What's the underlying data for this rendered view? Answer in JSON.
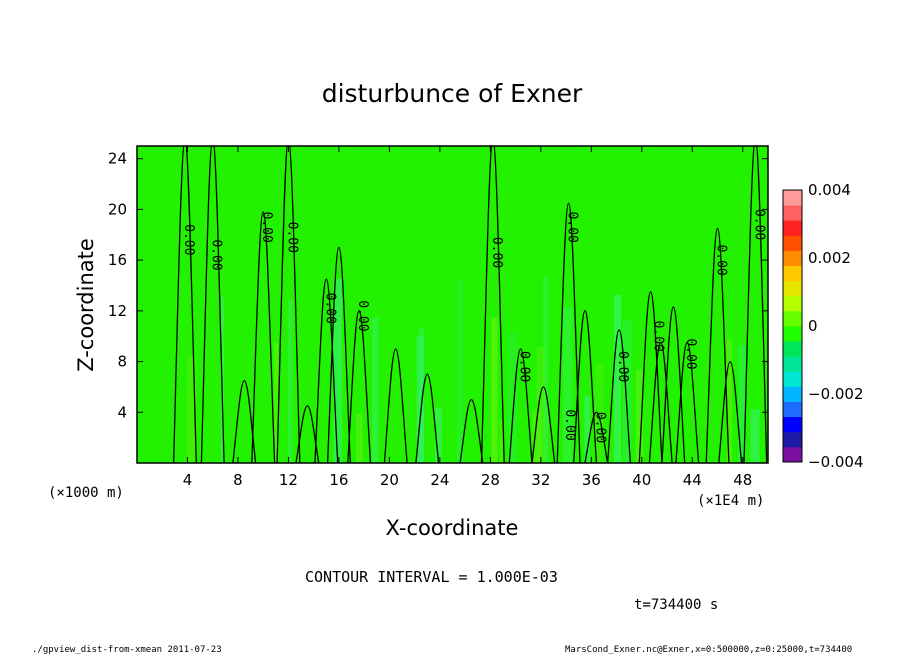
{
  "chart_data": {
    "type": "contour",
    "title": "disturbunce of Exner",
    "xlabel": "X-coordinate",
    "ylabel": "Z-coordinate",
    "x_unit_left": "(×1000 m)",
    "x_unit_right": "(×1E4 m)",
    "xlim": [
      0,
      50
    ],
    "ylim": [
      0,
      25
    ],
    "x_ticks": [
      4,
      8,
      12,
      16,
      20,
      24,
      28,
      32,
      36,
      40,
      44,
      48
    ],
    "y_ticks": [
      4,
      8,
      12,
      16,
      20,
      24
    ],
    "contour_interval_text": "CONTOUR INTERVAL = 1.000E-03",
    "time_text": "t=734400 s",
    "contour_labels": [
      {
        "text": "0.00",
        "x": 3.8,
        "y": 17.6
      },
      {
        "text": "0.00",
        "x": 6.0,
        "y": 16.4
      },
      {
        "text": "0.00",
        "x": 10.0,
        "y": 18.6
      },
      {
        "text": "0.00",
        "x": 12.0,
        "y": 17.8
      },
      {
        "text": "0.00",
        "x": 15.0,
        "y": 12.2
      },
      {
        "text": "0.00",
        "x": 17.6,
        "y": 11.6
      },
      {
        "text": "0.00",
        "x": 28.2,
        "y": 16.6
      },
      {
        "text": "0.00",
        "x": 30.4,
        "y": 7.6
      },
      {
        "text": "0.00",
        "x": 34.2,
        "y": 18.6
      },
      {
        "text": "0.00",
        "x": 34.0,
        "y": 3.0
      },
      {
        "text": "0.00",
        "x": 36.4,
        "y": 2.8
      },
      {
        "text": "0.00",
        "x": 38.2,
        "y": 7.6
      },
      {
        "text": "0.00",
        "x": 41.0,
        "y": 10.0
      },
      {
        "text": "0.00",
        "x": 43.6,
        "y": 8.6
      },
      {
        "text": "0.00",
        "x": 46.0,
        "y": 16.0
      },
      {
        "text": "0.00",
        "x": 49.0,
        "y": 18.8
      }
    ],
    "colorbar": {
      "min": -0.004,
      "max": 0.004,
      "tick_labels": [
        "0.004",
        "0.002",
        "0",
        "−0.002",
        "−0.004"
      ],
      "tick_values": [
        0.004,
        0.002,
        0,
        -0.002,
        -0.004
      ],
      "colors": [
        "#7a0fa0",
        "#1a1aa6",
        "#0000ff",
        "#1e6dff",
        "#00b4ff",
        "#00e6d2",
        "#00e696",
        "#00e65a",
        "#20ff00",
        "#66ff00",
        "#b4ff00",
        "#e6e600",
        "#ffc800",
        "#ff8c00",
        "#ff5000",
        "#ff2020",
        "#ff6060",
        "#ff9a9a"
      ]
    },
    "field_color": "#22f200"
  },
  "footer": {
    "left": "./gpview_dist-from-xmean  2011-07-23",
    "right": "MarsCond_Exner.nc@Exner,x=0:500000,z=0:25000,t=734400"
  }
}
